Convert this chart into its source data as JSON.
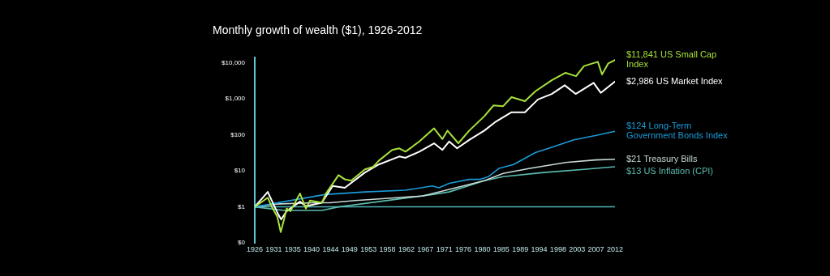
{
  "chart_data": {
    "type": "line",
    "title": "Monthly growth of wealth ($1), 1926-2012",
    "log": "y",
    "xlim": [
      1926,
      2012
    ],
    "xticks": [
      1926,
      {
        "value": 1930.53,
        "label": "1931"
      },
      {
        "value": 1935.05,
        "label": "1935"
      },
      {
        "value": 1939.58,
        "label": "1940"
      },
      {
        "value": 1944.11,
        "label": "1944"
      },
      {
        "value": 1948.63,
        "label": "1949"
      },
      {
        "value": 1953.16,
        "label": "1953"
      },
      {
        "value": 1957.68,
        "label": "1958"
      },
      {
        "value": 1962.21,
        "label": "1962"
      },
      {
        "value": 1966.74,
        "label": "1967"
      },
      {
        "value": 1971.26,
        "label": "1971"
      },
      {
        "value": 1975.79,
        "label": "1976"
      },
      {
        "value": 1980.32,
        "label": "1980"
      },
      {
        "value": 1984.84,
        "label": "1985"
      },
      {
        "value": 1989.37,
        "label": "1989"
      },
      {
        "value": 1993.89,
        "label": "1994"
      },
      {
        "value": 1998.42,
        "label": "1998"
      },
      {
        "value": 2002.95,
        "label": "2003"
      },
      {
        "value": 2007.47,
        "label": "2007"
      },
      2012
    ],
    "ylim": [
      0.1,
      14000
    ],
    "yticks": [
      {
        "value": 0.1,
        "label": "$0"
      },
      {
        "value": 1,
        "label": "$1"
      },
      {
        "value": 10,
        "label": "$10"
      },
      {
        "value": 100,
        "label": "$100"
      },
      {
        "value": 1000,
        "label": "$1,000"
      },
      {
        "value": 10000,
        "label": "$10,000"
      }
    ],
    "grid": false,
    "marker": "none",
    "line_style": "solid",
    "ref_lines": [
      {
        "axis": "y",
        "value": 1,
        "color": "#4fb3b8"
      }
    ],
    "series": [
      {
        "name": "$11,841 US Small Cap Index",
        "color": "#a8e23a",
        "x": [
          1926,
          1929.1,
          1930,
          1931.4,
          1932.2,
          1933,
          1933.6,
          1934.5,
          1936.8,
          1938.2,
          1939.2,
          1942,
          1943,
          1946,
          1947.5,
          1949,
          1952.3,
          1954.3,
          1955.6,
          1958.8,
          1960.5,
          1962,
          1965.3,
          1968.8,
          1970.8,
          1972,
          1974.6,
          1977.2,
          1980.8,
          1983,
          1985.3,
          1987.3,
          1990.5,
          1993,
          1996.9,
          2000.2,
          2002.7,
          2004.6,
          2007.9,
          2008.9,
          2010.4,
          2012
        ],
        "values": [
          1,
          1.8,
          1.05,
          0.53,
          0.2,
          0.45,
          0.9,
          0.76,
          2.35,
          0.9,
          1.5,
          1.3,
          2.35,
          7.6,
          5.8,
          5.3,
          11,
          13,
          19,
          38,
          42,
          34,
          65,
          150,
          76,
          130,
          58,
          130,
          325,
          650,
          620,
          1100,
          850,
          1600,
          3250,
          5200,
          4200,
          8000,
          10500,
          4700,
          9500,
          11841
        ]
      },
      {
        "name": "$2,986 US Market Index",
        "color": "#ffffff",
        "x": [
          1926,
          1929.1,
          1931.6,
          1932.3,
          1933.6,
          1936.8,
          1938.2,
          1942,
          1944.6,
          1947.5,
          1952.3,
          1955.6,
          1960.5,
          1962,
          1965.3,
          1968.8,
          1970.8,
          1972.4,
          1974.3,
          1977.2,
          1980.8,
          1983.3,
          1987.3,
          1990.5,
          1993.6,
          1996.9,
          2000,
          2002.6,
          2006.9,
          2008.6,
          2012
        ],
        "values": [
          1,
          2.6,
          0.62,
          0.45,
          0.76,
          1.4,
          1.05,
          1.3,
          3.8,
          3.4,
          9,
          15,
          25,
          23,
          34,
          58,
          38,
          65,
          42,
          72,
          130,
          220,
          420,
          420,
          950,
          1350,
          2350,
          1350,
          2750,
          1450,
          2986
        ]
      },
      {
        "name": "$124 Long-Term Government Bonds Index",
        "color": "#1a9bd7",
        "x": [
          1926,
          1933,
          1942.7,
          1952.3,
          1962,
          1968.4,
          1970,
          1972.4,
          1977.2,
          1979.8,
          1981.8,
          1984.3,
          1987.8,
          1993,
          1996.9,
          2002.2,
          2007.3,
          2012
        ],
        "values": [
          1,
          1.4,
          2.2,
          2.6,
          2.9,
          3.8,
          3.4,
          4.5,
          5.8,
          5.8,
          6.9,
          11.7,
          15,
          32,
          45,
          72,
          95,
          124
        ]
      },
      {
        "name": "$21 Treasury Bills",
        "color": "#c8d8d8",
        "x": [
          1926,
          1931,
          1940,
          1944,
          1950,
          1960,
          1966,
          1980.8,
          1985.3,
          1991.7,
          2000.2,
          2007.3,
          2012
        ],
        "values": [
          1,
          1.2,
          1.3,
          1.3,
          1.5,
          1.8,
          2,
          5.3,
          8.5,
          11.7,
          17,
          20,
          21
        ]
      },
      {
        "name": "$13 US Inflation (CPI)",
        "color": "#5cbcae",
        "x": [
          1926,
          1933,
          1942,
          1946,
          1955.6,
          1968.4,
          1972.4,
          1980.8,
          1985.3,
          1995,
          2004.6,
          2012
        ],
        "values": [
          1,
          0.8,
          0.8,
          1,
          1.4,
          2.2,
          2.6,
          5.3,
          6.9,
          9,
          11,
          13
        ]
      }
    ]
  }
}
